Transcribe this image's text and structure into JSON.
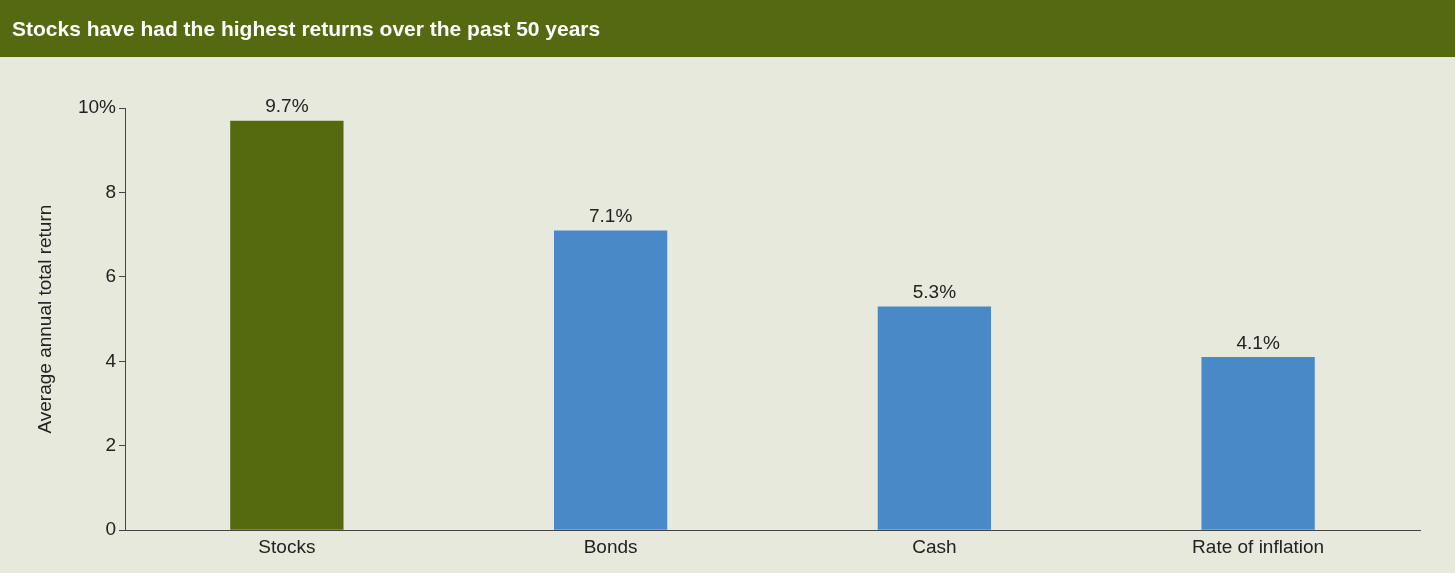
{
  "chart_data": {
    "type": "bar",
    "title": "Stocks have had the highest returns over the past 50 years",
    "ylabel": "Average annual total return",
    "categories": [
      "Stocks",
      "Bonds",
      "Cash",
      "Rate of inflation"
    ],
    "values": [
      9.7,
      7.1,
      5.3,
      4.1
    ],
    "colors": [
      "#55690e",
      "#4a89c8",
      "#4a89c8",
      "#4a89c8"
    ],
    "value_labels": [
      "9.7%",
      "7.1%",
      "5.3%",
      "4.1%"
    ],
    "ylim": [
      0,
      10
    ],
    "yticks": [
      0,
      2,
      4,
      6,
      8,
      {
        "value": 10,
        "label": "10%"
      }
    ],
    "grid": false,
    "legend": false
  }
}
